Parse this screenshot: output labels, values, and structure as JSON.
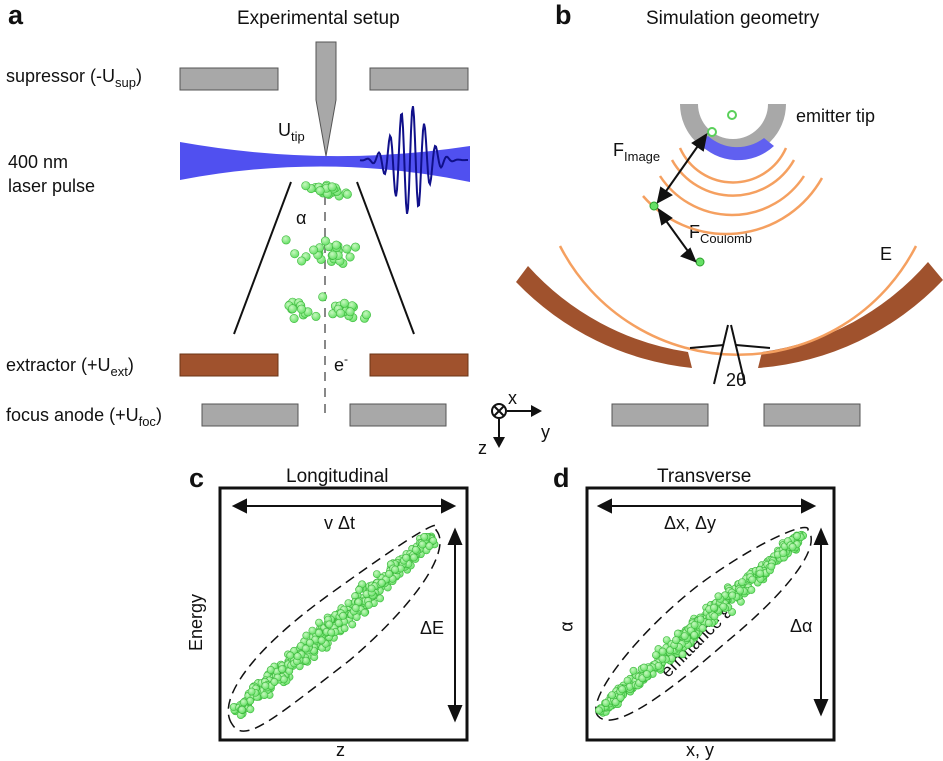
{
  "panels": {
    "a": {
      "letter": "a",
      "title": "Experimental setup"
    },
    "b": {
      "letter": "b",
      "title": "Simulation geometry"
    },
    "c": {
      "letter": "c",
      "title": "Longitudinal"
    },
    "d": {
      "letter": "d",
      "title": "Transverse"
    }
  },
  "setup_labels": {
    "suppressor": {
      "main": "supressor (-U",
      "sub": "sup",
      "tail": ")"
    },
    "laser": {
      "line1": "400 nm",
      "line2": "laser pulse"
    },
    "extractor": {
      "main": "extractor (+U",
      "sub": "ext",
      "tail": ")"
    },
    "focus": {
      "main": "focus anode (+U",
      "sub": "foc",
      "tail": ")"
    },
    "utip": {
      "main": "U",
      "sub": "tip"
    },
    "alpha": "α",
    "electron": {
      "main": "e",
      "sup": "-"
    }
  },
  "axes_icon": {
    "x": "x",
    "y": "y",
    "z": "z"
  },
  "sim_labels": {
    "emitter": "emitter tip",
    "fimage": {
      "main": "F",
      "sub": "Image"
    },
    "fcoulomb": {
      "main": "F",
      "sub": "Coulomb"
    },
    "efield": "E",
    "angle": "2θ"
  },
  "phase_space": {
    "c": {
      "top": "v Δt",
      "side": "ΔE",
      "ylabel": "Energy",
      "xlabel": "z"
    },
    "d": {
      "top": "Δx, Δy",
      "side": "Δα",
      "ylabel": "α",
      "xlabel": "x, y",
      "emittance": "emittance ε"
    }
  },
  "colors": {
    "laser": "#5050f0",
    "electron": "#66e066",
    "electron_edge": "#2aa02a",
    "anode_gray": "#a8a8a8",
    "extractor_brown": "#a0522d",
    "field_orange": "#f5a060",
    "wave": "#10108a"
  }
}
